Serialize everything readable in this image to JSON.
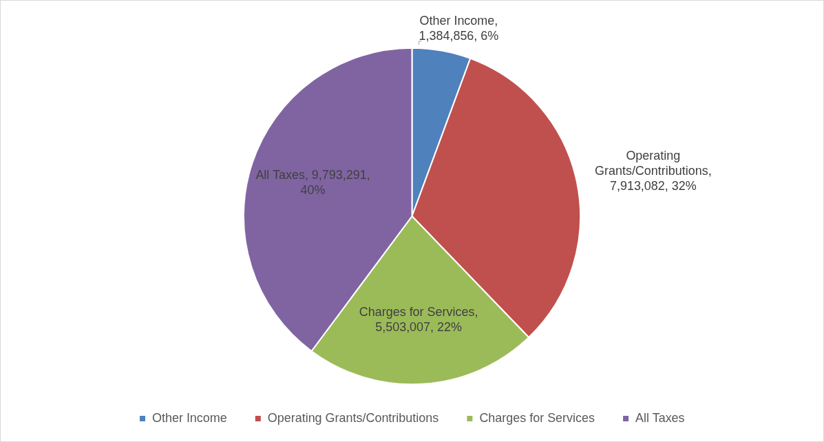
{
  "chart_data": {
    "type": "pie",
    "categories": [
      "Other Income",
      "Operating Grants/Contributions",
      "Charges for Services",
      "All Taxes"
    ],
    "values": [
      1384856,
      7913082,
      5503007,
      9793291
    ],
    "colors": [
      "#4f81bd",
      "#c0504d",
      "#9bbb59",
      "#8064a2"
    ],
    "value_labels": [
      "Other Income, 1,384,856, 6%",
      "Operating Grants/Contributions, 7,913,082, 32%",
      "Charges for Services, 5,503,007, 22%",
      "All Taxes, 9,793,291, 40%"
    ],
    "legend": "bottom"
  }
}
